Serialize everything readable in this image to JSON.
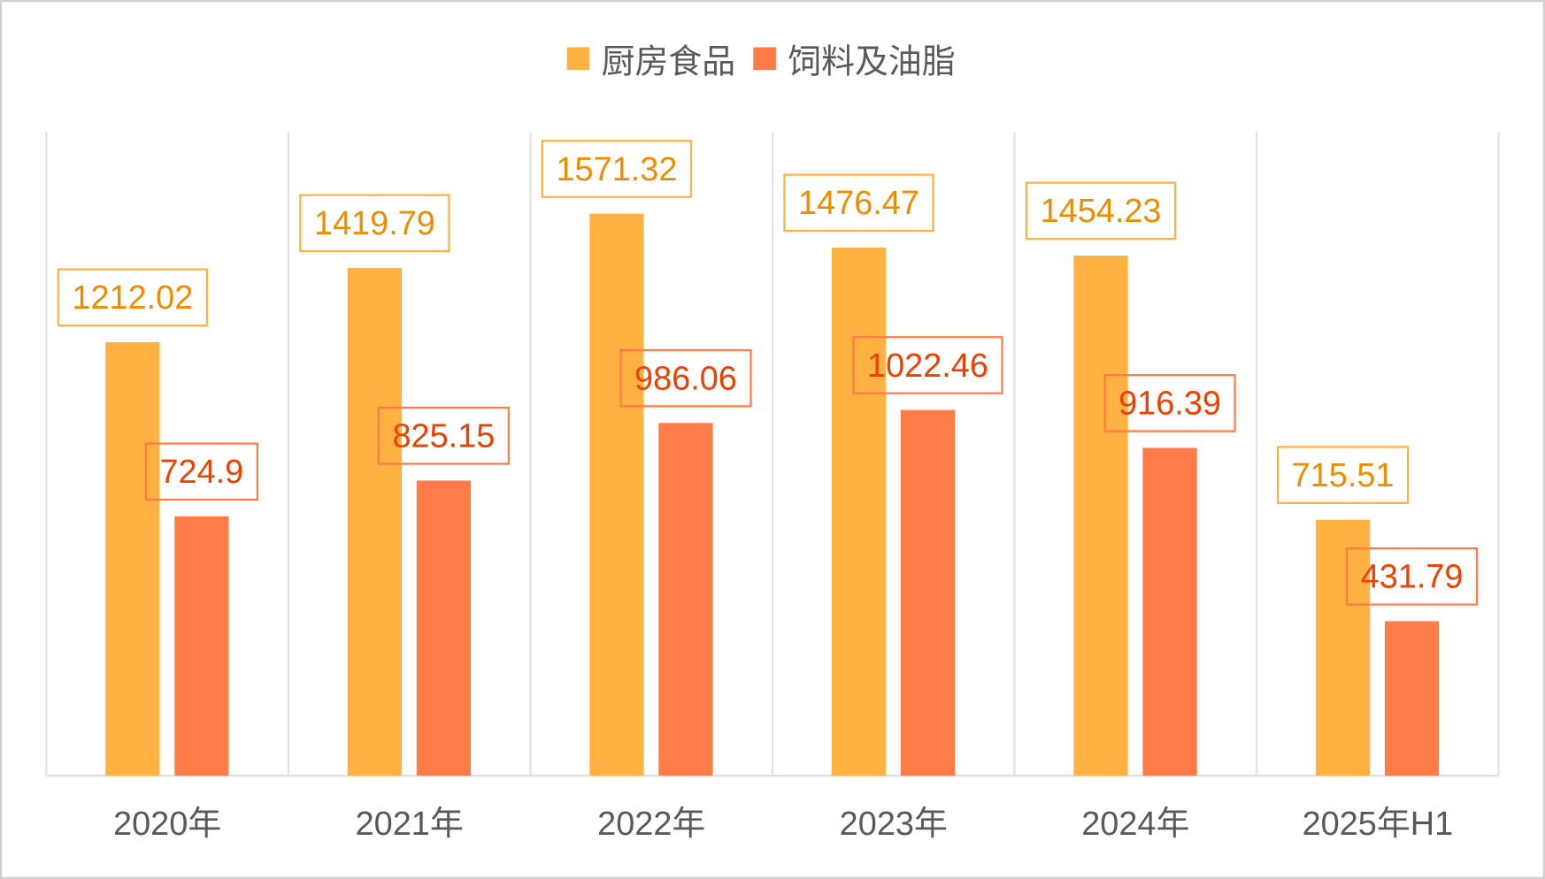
{
  "chart_data": {
    "type": "bar",
    "categories": [
      "2020年",
      "2021年",
      "2022年",
      "2023年",
      "2024年",
      "2025年H1"
    ],
    "series": [
      {
        "name": "厨房食品",
        "values": [
          1212.02,
          1419.79,
          1571.32,
          1476.47,
          1454.23,
          715.51
        ],
        "color": "#FFB142",
        "label_color": "#F08C00"
      },
      {
        "name": "饲料及油脂",
        "values": [
          724.9,
          825.15,
          986.06,
          1022.46,
          916.39,
          431.79
        ],
        "color": "#FF7B47",
        "label_color": "#F04000"
      }
    ],
    "ylim": [
      0,
      1800
    ],
    "legend": "top",
    "grid": "vertical category separators",
    "data_labels": true
  }
}
